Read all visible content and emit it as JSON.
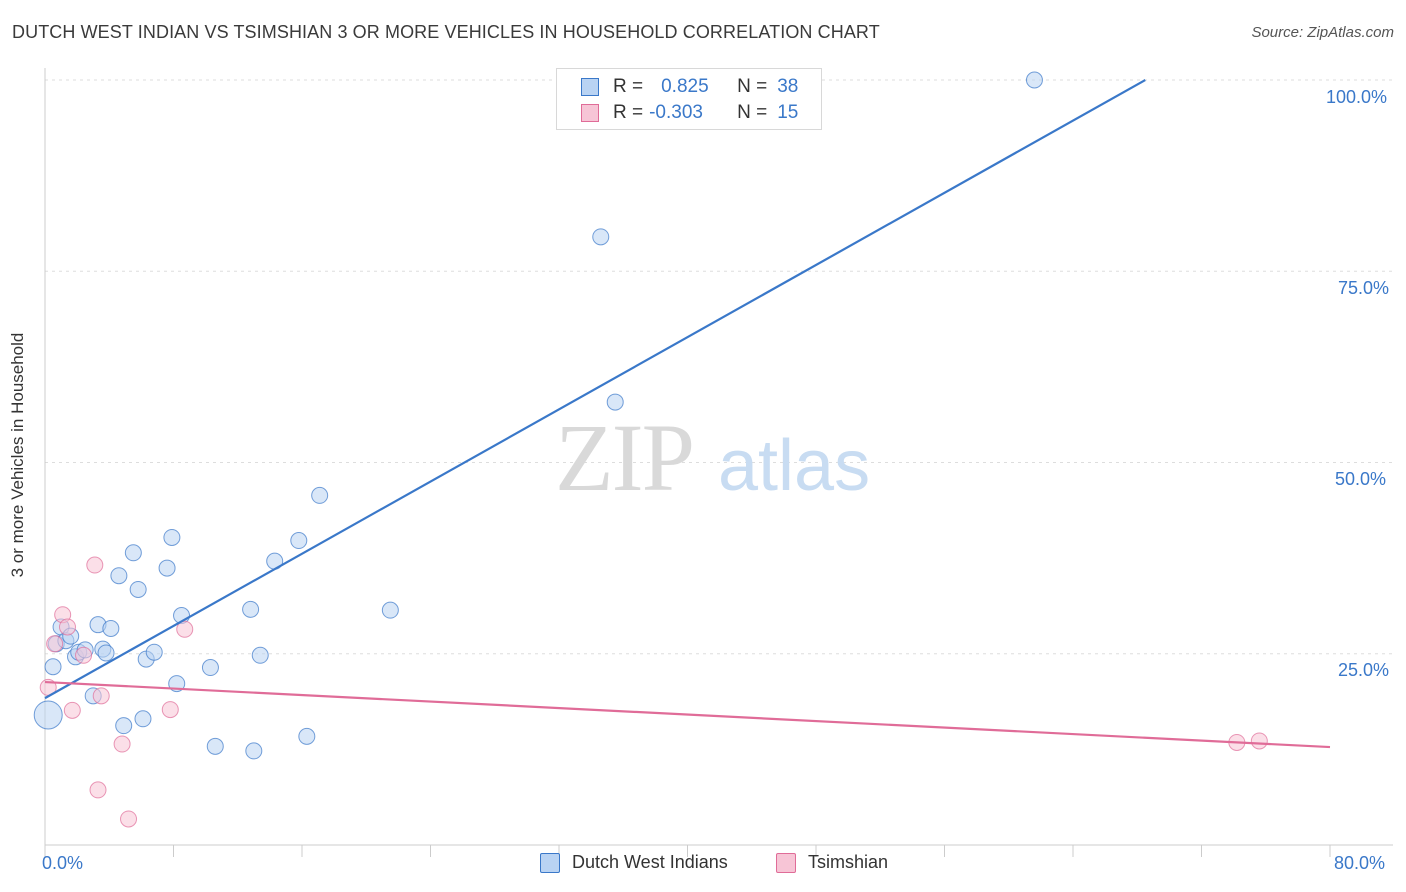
{
  "title": "DUTCH WEST INDIAN VS TSIMSHIAN 3 OR MORE VEHICLES IN HOUSEHOLD CORRELATION CHART",
  "source": "Source: ZipAtlas.com",
  "watermark": {
    "zip": "ZIP",
    "atlas": "atlas"
  },
  "legend": {
    "rows": [
      {
        "r_label": "R =",
        "r_value": "0.825",
        "n_label": "N =",
        "n_value": "38"
      },
      {
        "r_label": "R =",
        "r_value": "-0.303",
        "n_label": "N =",
        "n_value": "15"
      }
    ]
  },
  "bottom_legend": {
    "series1": "Dutch West Indians",
    "series2": "Tsimshian"
  },
  "axis_labels": {
    "x_min": "0.0%",
    "x_max": "80.0%",
    "y_100": "100.0%",
    "y_75": "75.0%",
    "y_50": "50.0%",
    "y_25": "25.0%"
  },
  "colors": {
    "blue": "#3a78c9",
    "blue_fill": "#b9d3f3",
    "pink": "#e06c98",
    "pink_fill": "#f7c5d6",
    "grid": "#dddddd"
  },
  "chart_data": {
    "type": "scatter",
    "title": "DUTCH WEST INDIAN VS TSIMSHIAN 3 OR MORE VEHICLES IN HOUSEHOLD CORRELATION CHART",
    "xlabel": "",
    "ylabel": "3 or more Vehicles in Household",
    "xlim": [
      0,
      80
    ],
    "ylim": [
      0,
      100
    ],
    "y_ticks": [
      25,
      50,
      75,
      100
    ],
    "grid": true,
    "legend_position": "top-center",
    "series": [
      {
        "name": "Dutch West Indians",
        "color": "#3a78c9",
        "trend": {
          "x": [
            0,
            68.5
          ],
          "y": [
            19.2,
            100
          ]
        },
        "points": [
          [
            0.2,
            17.0
          ],
          [
            0.5,
            23.3
          ],
          [
            0.7,
            26.3
          ],
          [
            1.0,
            28.5
          ],
          [
            1.3,
            26.7
          ],
          [
            1.6,
            27.3
          ],
          [
            1.9,
            24.6
          ],
          [
            2.1,
            25.2
          ],
          [
            2.5,
            25.5
          ],
          [
            3.0,
            19.5
          ],
          [
            3.3,
            28.8
          ],
          [
            3.6,
            25.6
          ],
          [
            3.8,
            25.1
          ],
          [
            4.1,
            28.3
          ],
          [
            4.6,
            35.2
          ],
          [
            4.9,
            15.6
          ],
          [
            5.5,
            38.2
          ],
          [
            5.8,
            33.4
          ],
          [
            6.1,
            16.5
          ],
          [
            6.3,
            24.3
          ],
          [
            6.8,
            25.2
          ],
          [
            7.6,
            36.2
          ],
          [
            7.9,
            40.2
          ],
          [
            8.2,
            21.1
          ],
          [
            8.5,
            30.0
          ],
          [
            10.3,
            23.2
          ],
          [
            10.6,
            12.9
          ],
          [
            12.8,
            30.8
          ],
          [
            13.0,
            12.3
          ],
          [
            13.4,
            24.8
          ],
          [
            14.3,
            37.1
          ],
          [
            15.8,
            39.8
          ],
          [
            16.3,
            14.2
          ],
          [
            17.1,
            45.7
          ],
          [
            21.5,
            30.7
          ],
          [
            34.6,
            79.5
          ],
          [
            35.5,
            57.9
          ],
          [
            61.6,
            100.0
          ]
        ]
      },
      {
        "name": "Tsimshian",
        "color": "#e06c98",
        "trend": {
          "x": [
            0,
            80
          ],
          "y": [
            21.3,
            12.8
          ]
        },
        "points": [
          [
            0.6,
            26.3
          ],
          [
            1.1,
            30.1
          ],
          [
            1.4,
            28.5
          ],
          [
            1.7,
            17.6
          ],
          [
            2.4,
            24.8
          ],
          [
            3.1,
            36.6
          ],
          [
            3.3,
            7.2
          ],
          [
            3.5,
            19.5
          ],
          [
            4.8,
            13.2
          ],
          [
            5.2,
            3.4
          ],
          [
            7.8,
            17.7
          ],
          [
            8.7,
            28.2
          ],
          [
            0.2,
            20.6
          ],
          [
            74.2,
            13.4
          ],
          [
            75.6,
            13.6
          ]
        ]
      }
    ]
  }
}
